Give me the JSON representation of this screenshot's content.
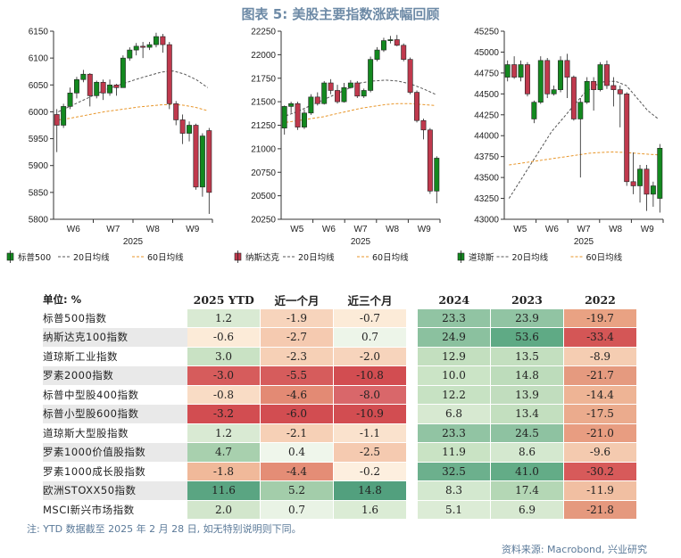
{
  "title": "图表 5:  美股主要指数涨跌幅回顾",
  "chart_data": [
    {
      "type": "candlestick",
      "legend": [
        "标普500",
        "20日均线",
        "60日均线"
      ],
      "year_label": "2025",
      "x_ticks": [
        "W6",
        "W7",
        "W8",
        "W9"
      ],
      "y_ticks": [
        5800,
        5850,
        5900,
        5950,
        6000,
        6050,
        6100,
        6150
      ],
      "ylim": [
        5800,
        6150
      ],
      "colors": {
        "up": "#13891f",
        "down": "#c0394d",
        "ma20": "#555555",
        "ma60": "#e8962a"
      },
      "candles": [
        [
          5995,
          5975,
          6005,
          5925
        ],
        [
          5975,
          6010,
          6015,
          5970
        ],
        [
          6010,
          6035,
          6045,
          6005
        ],
        [
          6035,
          6060,
          6065,
          6025
        ],
        [
          6060,
          6070,
          6078,
          6055
        ],
        [
          6070,
          6030,
          6072,
          6010
        ],
        [
          6030,
          6055,
          6058,
          6025
        ],
        [
          6055,
          6035,
          6060,
          6022
        ],
        [
          6035,
          6050,
          6060,
          6030
        ],
        [
          6050,
          6045,
          6052,
          6030
        ],
        [
          6045,
          6100,
          6105,
          6045
        ],
        [
          6100,
          6115,
          6120,
          6095
        ],
        [
          6115,
          6122,
          6128,
          6105
        ],
        [
          6122,
          6120,
          6130,
          6100
        ],
        [
          6120,
          6125,
          6130,
          6115
        ],
        [
          6125,
          6140,
          6147,
          6120
        ],
        [
          6140,
          6125,
          6145,
          6110
        ],
        [
          6125,
          6015,
          6130,
          6005
        ],
        [
          6015,
          5985,
          6020,
          5975
        ],
        [
          5985,
          5960,
          5995,
          5940
        ],
        [
          5960,
          5975,
          5982,
          5945
        ],
        [
          5975,
          5860,
          5978,
          5855
        ],
        [
          5860,
          5955,
          5960,
          5842
        ],
        [
          5965,
          5850,
          5970,
          5810
        ]
      ],
      "ma20": [
        6000,
        6010,
        6020,
        6030,
        6040,
        6048,
        6055,
        6062,
        6068,
        6074,
        6076,
        6070,
        6060,
        6045
      ],
      "ma60": [
        5985,
        5988,
        5992,
        5996,
        6000,
        6003,
        6006,
        6009,
        6011,
        6013,
        6014,
        6012,
        6008,
        6002
      ]
    },
    {
      "type": "candlestick",
      "legend": [
        "纳斯达克",
        "20日均线",
        "60日均线"
      ],
      "year_label": "2025",
      "x_ticks": [
        "W5",
        "W6",
        "W7",
        "W8",
        "W9"
      ],
      "y_ticks": [
        20250,
        20500,
        20750,
        21000,
        21250,
        21500,
        21750,
        22000,
        22250
      ],
      "ylim": [
        20250,
        22250
      ],
      "colors": {
        "up": "#13891f",
        "down": "#c0394d",
        "ma20": "#555555",
        "ma60": "#e8962a"
      },
      "candles": [
        [
          21220,
          21450,
          21460,
          21150
        ],
        [
          21450,
          21480,
          21500,
          21380
        ],
        [
          21480,
          21230,
          21500,
          21200
        ],
        [
          21230,
          21380,
          21420,
          21210
        ],
        [
          21380,
          21550,
          21580,
          21360
        ],
        [
          21550,
          21480,
          21600,
          21460
        ],
        [
          21480,
          21700,
          21720,
          21470
        ],
        [
          21700,
          21620,
          21740,
          21580
        ],
        [
          21620,
          21500,
          21680,
          21480
        ],
        [
          21500,
          21650,
          21700,
          21490
        ],
        [
          21650,
          21700,
          21730,
          21640
        ],
        [
          21700,
          21560,
          21720,
          21540
        ],
        [
          21560,
          21620,
          21640,
          21540
        ],
        [
          21620,
          21950,
          21980,
          21600
        ],
        [
          21950,
          22050,
          22080,
          21930
        ],
        [
          22050,
          22150,
          22180,
          22030
        ],
        [
          22150,
          22160,
          22200,
          22120
        ],
        [
          22160,
          22100,
          22210,
          22090
        ],
        [
          22100,
          21950,
          22120,
          21930
        ],
        [
          21950,
          21600,
          21970,
          21580
        ],
        [
          21600,
          21300,
          21620,
          21280
        ],
        [
          21300,
          21200,
          21320,
          21100
        ],
        [
          21200,
          20550,
          21220,
          20520
        ],
        [
          20550,
          20900,
          20920,
          20420
        ]
      ],
      "ma20": [
        21350,
        21400,
        21460,
        21520,
        21580,
        21640,
        21700,
        21720,
        21730,
        21720,
        21690,
        21640,
        21580
      ],
      "ma60": [
        21280,
        21300,
        21320,
        21340,
        21370,
        21400,
        21430,
        21450,
        21470,
        21480,
        21480,
        21470,
        21460
      ]
    },
    {
      "type": "candlestick",
      "legend": [
        "道琼斯",
        "20日均线",
        "60日均线"
      ],
      "year_label": "2025",
      "x_ticks": [
        "W5",
        "W6",
        "W7",
        "W8",
        "W9"
      ],
      "y_ticks": [
        43000,
        43250,
        43500,
        43750,
        44000,
        44250,
        44500,
        44750,
        45000,
        45250
      ],
      "ylim": [
        43000,
        45250
      ],
      "colors": {
        "up": "#13891f",
        "down": "#c0394d",
        "ma20": "#555555",
        "ma60": "#e8962a"
      },
      "candles": [
        [
          44700,
          44850,
          44900,
          44650
        ],
        [
          44850,
          44700,
          44950,
          44680
        ],
        [
          44700,
          44850,
          44900,
          44650
        ],
        [
          44850,
          44500,
          44880,
          44470
        ],
        [
          44200,
          44400,
          44420,
          44150
        ],
        [
          44400,
          44900,
          44950,
          44380
        ],
        [
          44900,
          44500,
          44930,
          44450
        ],
        [
          44500,
          44550,
          44600,
          44480
        ],
        [
          44550,
          44900,
          44950,
          44520
        ],
        [
          44900,
          44700,
          44980,
          44450
        ],
        [
          44700,
          44200,
          44720,
          44180
        ],
        [
          44200,
          44400,
          44450,
          43500
        ],
        [
          44400,
          44650,
          44700,
          44380
        ],
        [
          44650,
          44550,
          44700,
          44300
        ],
        [
          44550,
          44850,
          44880,
          44530
        ],
        [
          44850,
          44600,
          44900,
          44560
        ],
        [
          44600,
          44550,
          44700,
          44350
        ],
        [
          44550,
          44500,
          44600,
          44100
        ],
        [
          44500,
          43450,
          44520,
          43400
        ],
        [
          43450,
          43400,
          43800,
          43300
        ],
        [
          43400,
          43600,
          43650,
          43200
        ],
        [
          43600,
          43300,
          43650,
          43100
        ],
        [
          43300,
          43400,
          43450,
          43150
        ],
        [
          43250,
          43850,
          43900,
          43080
        ]
      ],
      "ma20": [
        43250,
        43450,
        43650,
        43850,
        44050,
        44200,
        44350,
        44500,
        44600,
        44650,
        44650,
        44600,
        44450,
        44300,
        44200
      ],
      "ma60": [
        43650,
        43670,
        43690,
        43710,
        43730,
        43750,
        43770,
        43790,
        43800,
        43805,
        43800,
        43790,
        43780,
        43770
      ]
    }
  ],
  "table": {
    "unit_label": "单位: %",
    "headers": [
      "2025 YTD",
      "近一个月",
      "近三个月",
      "2024",
      "2023",
      "2022"
    ],
    "rows": [
      {
        "name": "标普500指数",
        "values": [
          "1.2",
          "-1.9",
          "-0.7",
          "23.3",
          "23.9",
          "-19.7"
        ],
        "colors": [
          "#d9ead3",
          "#f7d4bc",
          "#fcebd8",
          "#91c4a3",
          "#91c4a3",
          "#e9a283"
        ]
      },
      {
        "name": "纳斯达克100指数",
        "values": [
          "-0.6",
          "-2.7",
          "0.7",
          "24.9",
          "53.6",
          "-33.4"
        ],
        "colors": [
          "#fcebd8",
          "#f5cab0",
          "#edf5e9",
          "#8bc19f",
          "#5faa85",
          "#d45656"
        ]
      },
      {
        "name": "道琼斯工业指数",
        "values": [
          "3.0",
          "-2.3",
          "-2.0",
          "12.9",
          "13.5",
          "-8.9"
        ],
        "colors": [
          "#c9e2c4",
          "#f6d0b6",
          "#f7d4bc",
          "#c3dfbf",
          "#c3dfbf",
          "#f5cdb2"
        ]
      },
      {
        "name": "罗素2000指数",
        "values": [
          "-3.0",
          "-5.5",
          "-10.8",
          "10.0",
          "14.8",
          "-21.7"
        ],
        "colors": [
          "#d65c5c",
          "#d65c5c",
          "#d24d51",
          "#cbe4c6",
          "#bddcbb",
          "#e59a7f"
        ]
      },
      {
        "name": "标普中型股400指数",
        "values": [
          "-0.8",
          "-4.6",
          "-8.0",
          "12.2",
          "13.9",
          "-14.4"
        ],
        "colors": [
          "#f9dcc5",
          "#e38a74",
          "#d9676a",
          "#c7e2c3",
          "#c1ddbe",
          "#eeb495"
        ]
      },
      {
        "name": "标普小型股600指数",
        "values": [
          "-3.2",
          "-6.0",
          "-10.9",
          "6.8",
          "13.4",
          "-17.5"
        ],
        "colors": [
          "#d24d51",
          "#d24d51",
          "#d24d51",
          "#d7e9d1",
          "#c3dfbf",
          "#ebab8d"
        ]
      },
      {
        "name": "道琼斯大型股指数",
        "values": [
          "1.2",
          "-2.1",
          "-1.1",
          "23.3",
          "24.5",
          "-21.0"
        ],
        "colors": [
          "#d9ead3",
          "#f6d0b6",
          "#fae2cd",
          "#91c4a3",
          "#8ec2a1",
          "#e89d81"
        ]
      },
      {
        "name": "罗素1000价值股指数",
        "values": [
          "4.7",
          "0.4",
          "-2.5",
          "11.9",
          "8.6",
          "-9.6"
        ],
        "colors": [
          "#a8d0ae",
          "#eff6eb",
          "#f5cab0",
          "#c9e3c4",
          "#d4e8cf",
          "#f4caaf"
        ]
      },
      {
        "name": "罗素1000成长股指数",
        "values": [
          "-1.8",
          "-4.4",
          "-0.2",
          "32.5",
          "41.0",
          "-30.2"
        ],
        "colors": [
          "#f0b99a",
          "#e48d76",
          "#fdefdf",
          "#6cb08d",
          "#63ac87",
          "#d75a5a"
        ]
      },
      {
        "name": "欧洲STOXX50指数",
        "values": [
          "11.6",
          "5.2",
          "14.8",
          "8.3",
          "17.4",
          "-11.9"
        ],
        "colors": [
          "#5aa582",
          "#a3cdaa",
          "#52a07e",
          "#d3e8cf",
          "#b4d7b5",
          "#f1bfa2"
        ]
      },
      {
        "name": "MSCI新兴市场指数",
        "values": [
          "2.0",
          "0.7",
          "1.6",
          "5.1",
          "6.9",
          "-21.8"
        ],
        "colors": [
          "#d2e6cc",
          "#e9f3e5",
          "#dbecd5",
          "#dcecd6",
          "#d7e9d1",
          "#e5997e"
        ]
      }
    ]
  },
  "note": "注: YTD 数据截至 2025 年 2 月 28 日, 如无特别说明则下同。",
  "source": "资料来源: Macrobond, 兴业研究"
}
